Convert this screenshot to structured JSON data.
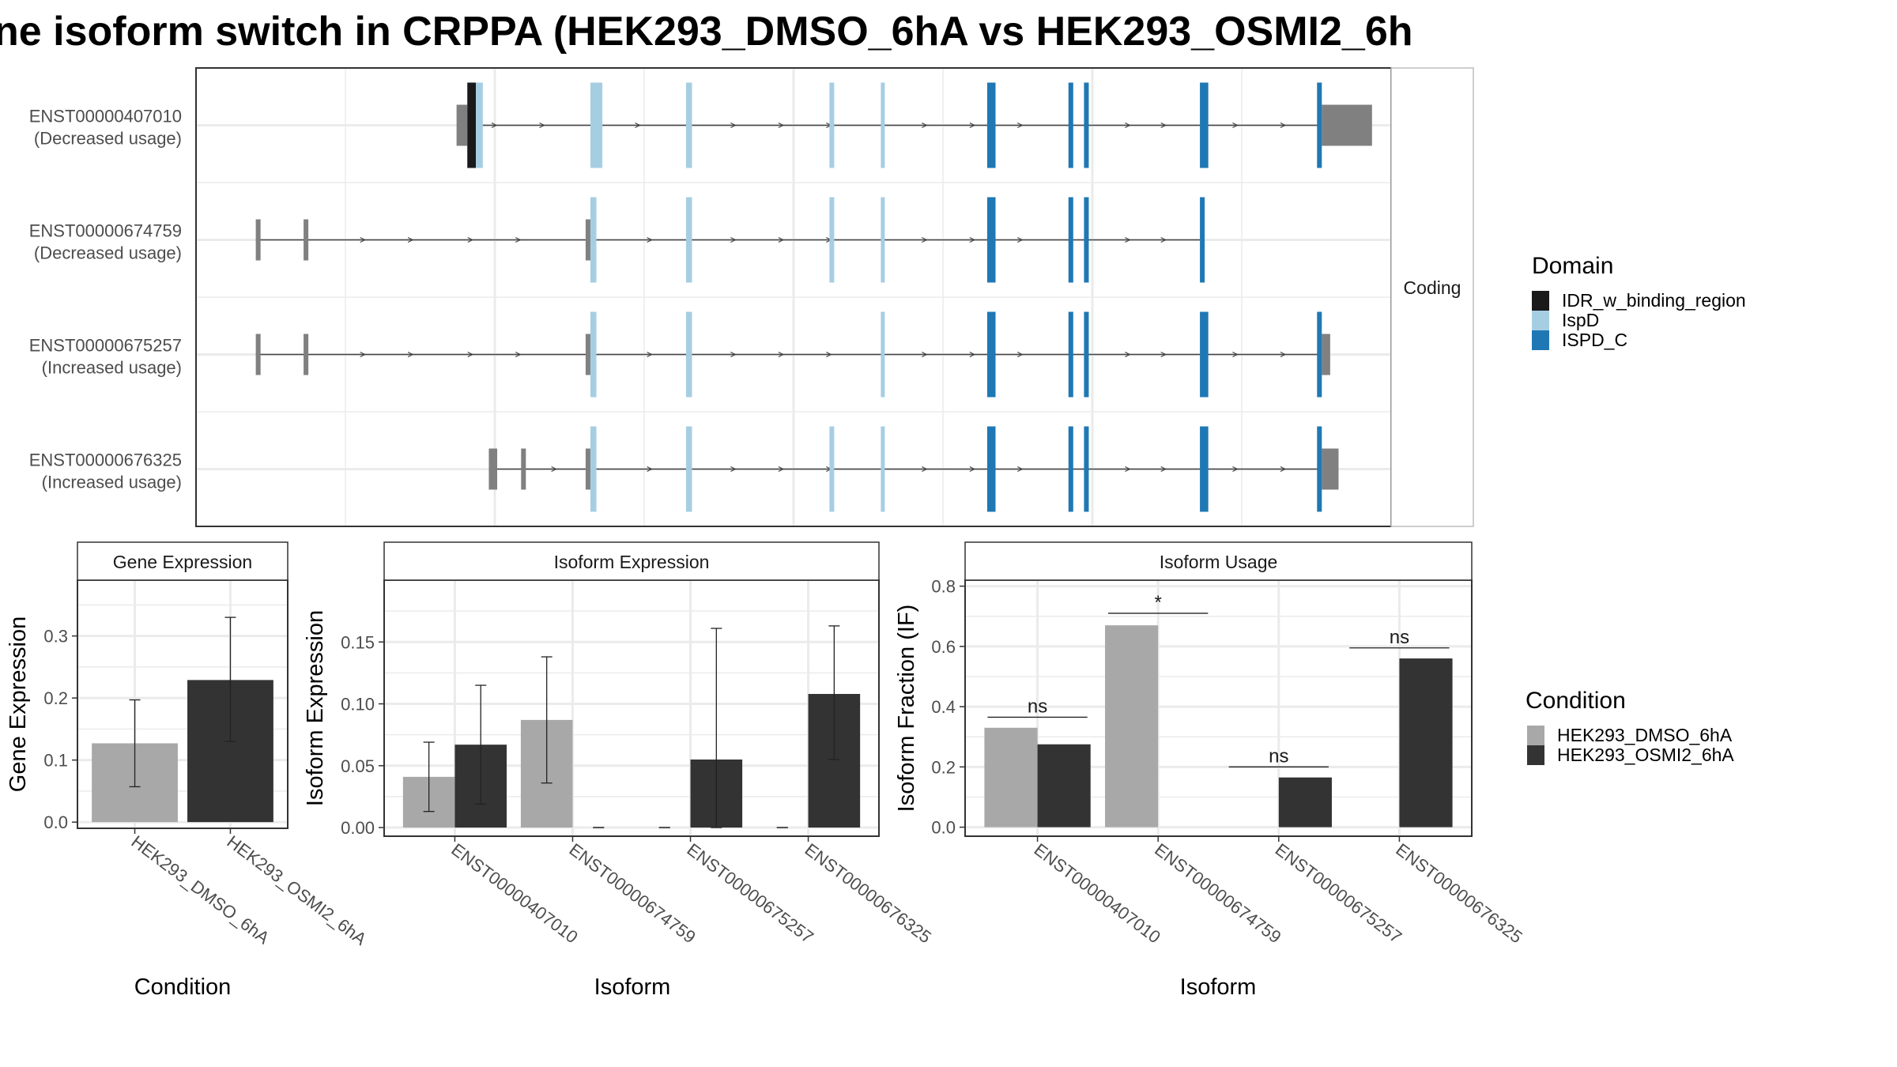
{
  "title": "ne isoform switch in CRPPA (HEK293_DMSO_6hA vs HEK293_OSMI2_6h",
  "colors": {
    "idr": "#1a1a1a",
    "ispd": "#a6cee3",
    "ispd_c": "#1f78b4",
    "utr": "#808080",
    "dmso": "#a8a8a8",
    "osmi2": "#333333",
    "grid": "#ebebeb",
    "panel_border": "#333333",
    "strip_border": "#bdbdbd"
  },
  "structure": {
    "strip_label": "Coding",
    "domain_legend": {
      "title": "Domain",
      "items": [
        {
          "label": "IDR_w_binding_region",
          "color": "#1a1a1a"
        },
        {
          "label": "IspD",
          "color": "#a6cee3"
        },
        {
          "label": "ISPD_C",
          "color": "#1f78b4"
        }
      ]
    },
    "x_range": [
      0,
      100
    ],
    "transcripts": [
      {
        "id": "ENST00000407010",
        "usage": "(Decreased usage)",
        "intron": [
          23,
          94
        ],
        "utr": [
          [
            21.8,
            22.7
          ],
          [
            94.2,
            98.4
          ]
        ],
        "exons": [
          [
            22.7,
            24.0,
            "mix"
          ],
          [
            33.0,
            34.0,
            "ispd"
          ],
          [
            41.0,
            41.5,
            "ispd"
          ],
          [
            53.0,
            53.4,
            "ispd"
          ],
          [
            57.3,
            57.6,
            "ispd"
          ],
          [
            66.2,
            66.9,
            "ispd_c"
          ],
          [
            73.0,
            73.4,
            "ispd_c"
          ],
          [
            74.3,
            74.7,
            "ispd_c"
          ],
          [
            84.0,
            84.7,
            "ispd_c"
          ],
          [
            98.0,
            98.5,
            "ispd_c"
          ]
        ],
        "exons_end": [
          [
            93.8,
            94.2,
            "ispd_c"
          ]
        ],
        "arrows": [
          25,
          29,
          37,
          45,
          49,
          53,
          61,
          65,
          69,
          78,
          81,
          87,
          91
        ]
      },
      {
        "id": "ENST00000674759",
        "usage": "(Decreased usage)",
        "intron": [
          5,
          84
        ],
        "utr": [
          [
            5.0,
            5.4
          ],
          [
            9.0,
            9.4
          ],
          [
            32.6,
            33.0
          ]
        ],
        "exons": [
          [
            33.0,
            33.5,
            "ispd"
          ],
          [
            41.0,
            41.5,
            "ispd"
          ],
          [
            53.0,
            53.4,
            "ispd"
          ],
          [
            57.3,
            57.6,
            "ispd"
          ],
          [
            66.2,
            66.9,
            "ispd_c"
          ],
          [
            73.0,
            73.4,
            "ispd_c"
          ],
          [
            74.3,
            74.7,
            "ispd_c"
          ],
          [
            84.0,
            84.4,
            "ispd_c"
          ]
        ],
        "exons_end": [],
        "arrows": [
          14,
          18,
          23,
          27,
          38,
          45,
          49,
          53,
          61,
          65,
          69,
          78,
          81
        ]
      },
      {
        "id": "ENST00000675257",
        "usage": "(Increased usage)",
        "intron": [
          5,
          94
        ],
        "utr": [
          [
            5.0,
            5.4
          ],
          [
            9.0,
            9.4
          ],
          [
            32.6,
            33.0
          ],
          [
            94.2,
            94.9
          ]
        ],
        "exons": [
          [
            33.0,
            33.5,
            "ispd"
          ],
          [
            41.0,
            41.5,
            "ispd"
          ],
          [
            57.3,
            57.6,
            "ispd"
          ],
          [
            66.2,
            66.9,
            "ispd_c"
          ],
          [
            73.0,
            73.4,
            "ispd_c"
          ],
          [
            74.3,
            74.7,
            "ispd_c"
          ],
          [
            84.0,
            84.7,
            "ispd_c"
          ]
        ],
        "exons_end": [
          [
            93.8,
            94.2,
            "ispd_c"
          ]
        ],
        "arrows": [
          14,
          18,
          23,
          27,
          38,
          45,
          49,
          53,
          61,
          65,
          69,
          78,
          81,
          87,
          91
        ]
      },
      {
        "id": "ENST00000676325",
        "usage": "(Increased usage)",
        "intron": [
          25,
          94
        ],
        "utr": [
          [
            24.5,
            25.2
          ],
          [
            27.2,
            27.6
          ],
          [
            32.6,
            33.0
          ],
          [
            94.2,
            95.6
          ]
        ],
        "exons": [
          [
            33.0,
            33.5,
            "ispd"
          ],
          [
            41.0,
            41.5,
            "ispd"
          ],
          [
            53.0,
            53.4,
            "ispd"
          ],
          [
            57.3,
            57.6,
            "ispd"
          ],
          [
            66.2,
            66.9,
            "ispd_c"
          ],
          [
            73.0,
            73.4,
            "ispd_c"
          ],
          [
            74.3,
            74.7,
            "ispd_c"
          ],
          [
            84.0,
            84.7,
            "ispd_c"
          ]
        ],
        "exons_end": [
          [
            93.8,
            94.2,
            "ispd_c"
          ]
        ],
        "arrows": [
          30,
          38,
          45,
          49,
          53,
          61,
          65,
          69,
          78,
          81,
          87,
          91
        ]
      }
    ]
  },
  "chart_data": [
    {
      "type": "bar",
      "strip": "Gene Expression",
      "ylabel": "Gene Expression",
      "xlabel": "Condition",
      "ylim": [
        -0.01,
        0.39
      ],
      "yticks": [
        "0.0",
        "0.1",
        "0.2",
        "0.3"
      ],
      "ytick_values": [
        0,
        0.1,
        0.2,
        0.3
      ],
      "categories": [
        "HEK293_DMSO_6hA",
        "HEK293_OSMI2_6hA"
      ],
      "values": [
        0.127,
        0.229
      ],
      "errors": [
        [
          0.057,
          0.197
        ],
        [
          0.13,
          0.33
        ]
      ],
      "bar_colors": [
        "#a8a8a8",
        "#333333"
      ]
    },
    {
      "type": "bar",
      "strip": "Isoform Expression",
      "ylabel": "Isoform Expression",
      "xlabel": "Isoform",
      "ylim": [
        -0.007,
        0.2
      ],
      "yticks": [
        "0.00",
        "0.05",
        "0.10",
        "0.15"
      ],
      "ytick_values": [
        0,
        0.05,
        0.1,
        0.15
      ],
      "categories": [
        "ENST00000407010",
        "ENST00000674759",
        "ENST00000675257",
        "ENST00000676325"
      ],
      "series": [
        {
          "values": [
            0.041,
            0.087,
            0.0,
            0.0
          ],
          "errors": [
            [
              0.013,
              0.069
            ],
            [
              0.036,
              0.138
            ],
            [
              0.0,
              0.0
            ],
            [
              0.0,
              0.0
            ]
          ],
          "color": "#a8a8a8"
        },
        {
          "values": [
            0.067,
            0.0,
            0.055,
            0.108
          ],
          "errors": [
            [
              0.019,
              0.115
            ],
            [
              0.0,
              0.0
            ],
            [
              0.0,
              0.161
            ],
            [
              0.055,
              0.163
            ]
          ],
          "color": "#333333"
        }
      ]
    },
    {
      "type": "bar",
      "strip": "Isoform Usage",
      "ylabel": "Isoform Fraction (IF)",
      "xlabel": "Isoform",
      "ylim": [
        -0.03,
        0.82
      ],
      "yticks": [
        "0.0",
        "0.2",
        "0.4",
        "0.6",
        "0.8"
      ],
      "ytick_values": [
        0,
        0.2,
        0.4,
        0.6,
        0.8
      ],
      "categories": [
        "ENST00000407010",
        "ENST00000674759",
        "ENST00000675257",
        "ENST00000676325"
      ],
      "series": [
        {
          "values": [
            0.33,
            0.67,
            0.0,
            0.0
          ],
          "color": "#a8a8a8"
        },
        {
          "values": [
            0.275,
            0.0,
            0.165,
            0.56
          ],
          "color": "#333333"
        }
      ],
      "annotations": [
        {
          "category": 0,
          "text": "ns",
          "y": 0.365
        },
        {
          "category": 1,
          "text": "*",
          "y": 0.71
        },
        {
          "category": 2,
          "text": "ns",
          "y": 0.2
        },
        {
          "category": 3,
          "text": "ns",
          "y": 0.595
        }
      ]
    }
  ],
  "condition_legend": {
    "title": "Condition",
    "items": [
      {
        "label": "HEK293_DMSO_6hA",
        "color": "#a8a8a8"
      },
      {
        "label": "HEK293_OSMI2_6hA",
        "color": "#333333"
      }
    ]
  }
}
